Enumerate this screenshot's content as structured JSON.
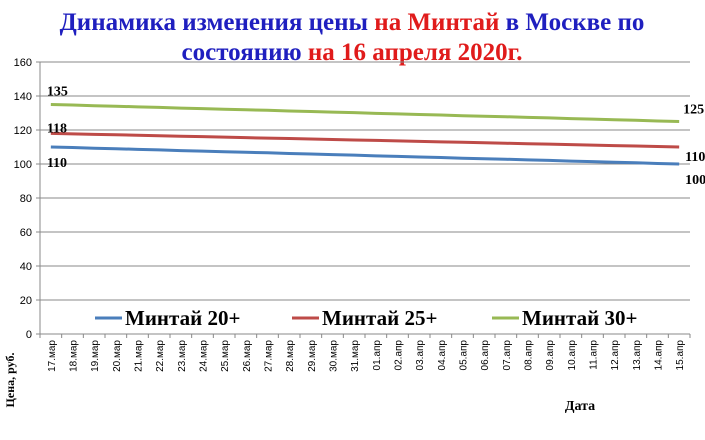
{
  "chart_data": {
    "type": "line",
    "title_lines": [
      [
        {
          "text": "Динамика изменения цены",
          "color": "#1f1fbf"
        },
        {
          "text": "на Минтай",
          "color": "#e01b1b"
        },
        {
          "text": "в Москве по",
          "color": "#1f1fbf"
        }
      ],
      [
        {
          "text": "состоянию",
          "color": "#1f1fbf"
        },
        {
          "text": "на 16 апреля 2020г.",
          "color": "#e01b1b"
        }
      ]
    ],
    "y_label": "Цена, руб.",
    "x_label": "Дата",
    "categories": [
      "17.мар",
      "18.мар",
      "19.мар",
      "20.мар",
      "21.мар",
      "22.мар",
      "23.мар",
      "24.мар",
      "25.мар",
      "26.мар",
      "27.мар",
      "28.мар",
      "29.мар",
      "30.мар",
      "31.мар",
      "01.апр",
      "02.апр",
      "03.апр",
      "04.апр",
      "05.апр",
      "06.апр",
      "07.апр",
      "08.апр",
      "09.апр",
      "10.апр",
      "11.апр",
      "12.апр",
      "13.апр",
      "14.апр",
      "15.апр"
    ],
    "series": [
      {
        "name": "Минтай 20+",
        "color": "#4a7ebb",
        "values": [
          110,
          109.7,
          109.3,
          109.0,
          108.6,
          108.3,
          107.9,
          107.6,
          107.2,
          106.9,
          106.6,
          106.2,
          105.9,
          105.5,
          105.2,
          104.8,
          104.5,
          104.1,
          103.8,
          103.4,
          103.1,
          102.8,
          102.4,
          102.1,
          101.7,
          101.4,
          101.0,
          100.7,
          100.3,
          100
        ]
      },
      {
        "name": "Минтай 25+",
        "color": "#be4b48",
        "values": [
          118,
          117.7,
          117.4,
          117.2,
          116.9,
          116.6,
          116.3,
          116.1,
          115.8,
          115.5,
          115.2,
          115.0,
          114.7,
          114.4,
          114.1,
          113.9,
          113.6,
          113.3,
          113.0,
          112.8,
          112.5,
          112.2,
          111.9,
          111.7,
          111.4,
          111.1,
          110.8,
          110.6,
          110.3,
          110
        ]
      },
      {
        "name": "Минтай 30+",
        "color": "#98b954",
        "values": [
          135,
          134.7,
          134.3,
          134.0,
          133.6,
          133.3,
          132.9,
          132.6,
          132.2,
          131.9,
          131.6,
          131.2,
          130.9,
          130.5,
          130.2,
          129.8,
          129.5,
          129.1,
          128.8,
          128.4,
          128.1,
          127.8,
          127.4,
          127.1,
          126.7,
          126.4,
          126.0,
          125.7,
          125.3,
          125
        ]
      }
    ],
    "ylim": [
      0,
      160
    ],
    "yticks": [
      0,
      20,
      40,
      60,
      80,
      100,
      120,
      140,
      160
    ],
    "grid": true
  }
}
